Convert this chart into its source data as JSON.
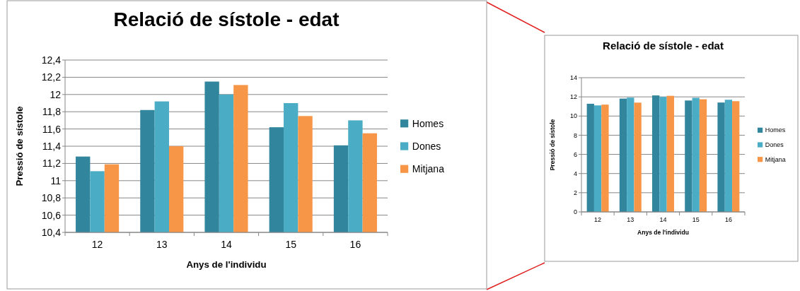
{
  "chart_data": [
    {
      "type": "bar",
      "title": "Relació de sístole - edat",
      "xlabel": "Anys de l'individu",
      "ylabel": "Pressió de sístole",
      "categories": [
        "12",
        "13",
        "14",
        "15",
        "16"
      ],
      "series": [
        {
          "name": "Homes",
          "color": "#31859c",
          "values": [
            11.28,
            11.82,
            12.15,
            11.62,
            11.41
          ]
        },
        {
          "name": "Dones",
          "color": "#4bacc6",
          "values": [
            11.11,
            11.92,
            12.0,
            11.9,
            11.7
          ]
        },
        {
          "name": "Mitjana",
          "color": "#f79646",
          "values": [
            11.19,
            11.4,
            12.11,
            11.75,
            11.55
          ]
        }
      ],
      "ylim": [
        10.4,
        12.4
      ],
      "yticks": [
        {
          "value": 10.4,
          "label": "10,4"
        },
        {
          "value": 10.6,
          "label": "10,6"
        },
        {
          "value": 10.8,
          "label": "10,8"
        },
        11,
        {
          "value": 11.2,
          "label": "11,2"
        },
        {
          "value": 11.4,
          "label": "11,4"
        },
        {
          "value": 11.6,
          "label": "11,6"
        },
        {
          "value": 11.8,
          "label": "11,8"
        },
        12,
        {
          "value": 12.2,
          "label": "12,2"
        },
        {
          "value": 12.4,
          "label": "12,4"
        }
      ],
      "grid": "y",
      "legend": "right"
    },
    {
      "type": "bar",
      "title": "Relació de sístole - edat",
      "xlabel": "Anys de l'individu",
      "ylabel": "Pressió de sístole",
      "categories": [
        "12",
        "13",
        "14",
        "15",
        "16"
      ],
      "series": [
        {
          "name": "Homes",
          "color": "#31859c",
          "values": [
            11.28,
            11.82,
            12.15,
            11.62,
            11.41
          ]
        },
        {
          "name": "Dones",
          "color": "#4bacc6",
          "values": [
            11.11,
            11.92,
            12.0,
            11.9,
            11.7
          ]
        },
        {
          "name": "Mitjana",
          "color": "#f79646",
          "values": [
            11.19,
            11.4,
            12.11,
            11.75,
            11.55
          ]
        }
      ],
      "ylim": [
        0,
        14
      ],
      "yticks": [
        0,
        2,
        4,
        6,
        8,
        10,
        12,
        14
      ],
      "grid": "y",
      "legend": "right"
    }
  ]
}
